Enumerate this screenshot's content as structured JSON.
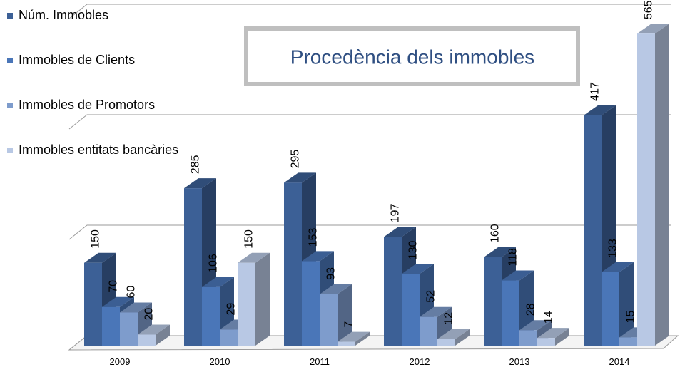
{
  "chart_data": {
    "type": "bar3d",
    "title": "Procedència dels immobles",
    "categories": [
      "2009",
      "2010",
      "2011",
      "2012",
      "2013",
      "2014"
    ],
    "series": [
      {
        "name": "Núm. Immobles",
        "color": "#3c6096",
        "values": [
          150,
          285,
          295,
          197,
          160,
          417
        ]
      },
      {
        "name": "Immobles de Clients",
        "color": "#4a76b8",
        "values": [
          70,
          106,
          153,
          130,
          118,
          133
        ]
      },
      {
        "name": "Immobles de Promotors",
        "color": "#7e9ccc",
        "values": [
          60,
          29,
          93,
          52,
          28,
          15
        ]
      },
      {
        "name": "Immobles entitats bancàries",
        "color": "#b8c8e4",
        "values": [
          20,
          150,
          7,
          12,
          14,
          565
        ]
      }
    ],
    "ylim": [
      0,
      600
    ],
    "yticks": [
      0,
      200,
      400,
      600
    ],
    "grid": true
  }
}
